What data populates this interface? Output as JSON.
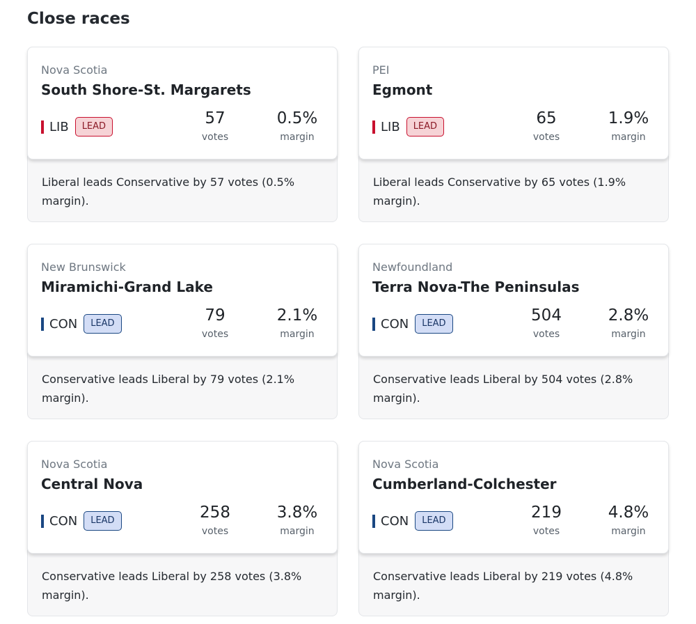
{
  "page": {
    "title": "Close races"
  },
  "labels": {
    "votes": "votes",
    "margin": "margin",
    "lead": "LEAD"
  },
  "colors": {
    "LIB": {
      "bar": "#c8102e",
      "badge_bg": "#f6d3d6",
      "badge_border": "#c8102e",
      "badge_text": "#8b1a26"
    },
    "CON": {
      "bar": "#1a4782",
      "badge_bg": "#d3ddf6",
      "badge_border": "#1a4782",
      "badge_text": "#1a3666"
    }
  },
  "races": [
    {
      "province": "Nova Scotia",
      "riding": "South Shore-St. Margarets",
      "party": "LIB",
      "votes": "57",
      "margin": "0.5%",
      "summary": "Liberal leads Conservative by 57 votes (0.5% margin)."
    },
    {
      "province": "PEI",
      "riding": "Egmont",
      "party": "LIB",
      "votes": "65",
      "margin": "1.9%",
      "summary": "Liberal leads Conservative by 65 votes (1.9% margin)."
    },
    {
      "province": "New Brunswick",
      "riding": "Miramichi-Grand Lake",
      "party": "CON",
      "votes": "79",
      "margin": "2.1%",
      "summary": "Conservative leads Liberal by 79 votes (2.1% margin)."
    },
    {
      "province": "Newfoundland",
      "riding": "Terra Nova-The Peninsulas",
      "party": "CON",
      "votes": "504",
      "margin": "2.8%",
      "summary": "Conservative leads Liberal by 504 votes (2.8% margin)."
    },
    {
      "province": "Nova Scotia",
      "riding": "Central Nova",
      "party": "CON",
      "votes": "258",
      "margin": "3.8%",
      "summary": "Conservative leads Liberal by 258 votes (3.8% margin)."
    },
    {
      "province": "Nova Scotia",
      "riding": "Cumberland-Colchester",
      "party": "CON",
      "votes": "219",
      "margin": "4.8%",
      "summary": "Conservative leads Liberal by 219 votes (4.8% margin)."
    }
  ]
}
